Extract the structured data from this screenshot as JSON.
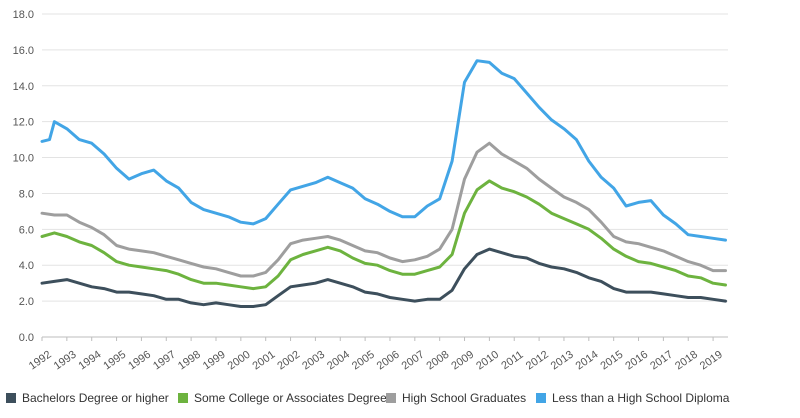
{
  "chart_data": {
    "type": "line",
    "x_ticks": [
      "1992",
      "1993",
      "1994",
      "1995",
      "1996",
      "1997",
      "1998",
      "1999",
      "2000",
      "2001",
      "2002",
      "2003",
      "2004",
      "2005",
      "2006",
      "2007",
      "2008",
      "2009",
      "2010",
      "2011",
      "2012",
      "2013",
      "2014",
      "2015",
      "2016",
      "2017",
      "2018",
      "2019"
    ],
    "y_ticks": [
      "0.0",
      "2.0",
      "4.0",
      "6.0",
      "8.0",
      "10.0",
      "12.0",
      "14.0",
      "16.0",
      "18.0"
    ],
    "ylim": [
      0,
      18
    ],
    "xlim": [
      1992,
      2019.6
    ],
    "grid": "horizontal",
    "legend_position": "bottom",
    "series": [
      {
        "name": "Bachelors Degree or higher",
        "color": "#3d4f5c",
        "points": [
          [
            1992,
            3.0
          ],
          [
            1992.5,
            3.1
          ],
          [
            1993,
            3.2
          ],
          [
            1993.5,
            3.0
          ],
          [
            1994,
            2.8
          ],
          [
            1994.5,
            2.7
          ],
          [
            1995,
            2.5
          ],
          [
            1995.5,
            2.5
          ],
          [
            1996,
            2.4
          ],
          [
            1996.5,
            2.3
          ],
          [
            1997,
            2.1
          ],
          [
            1997.5,
            2.1
          ],
          [
            1998,
            1.9
          ],
          [
            1998.5,
            1.8
          ],
          [
            1999,
            1.9
          ],
          [
            1999.5,
            1.8
          ],
          [
            2000,
            1.7
          ],
          [
            2000.5,
            1.7
          ],
          [
            2001,
            1.8
          ],
          [
            2001.5,
            2.3
          ],
          [
            2002,
            2.8
          ],
          [
            2002.5,
            2.9
          ],
          [
            2003,
            3.0
          ],
          [
            2003.5,
            3.2
          ],
          [
            2004,
            3.0
          ],
          [
            2004.5,
            2.8
          ],
          [
            2005,
            2.5
          ],
          [
            2005.5,
            2.4
          ],
          [
            2006,
            2.2
          ],
          [
            2006.5,
            2.1
          ],
          [
            2007,
            2.0
          ],
          [
            2007.5,
            2.1
          ],
          [
            2008,
            2.1
          ],
          [
            2008.5,
            2.6
          ],
          [
            2009,
            3.8
          ],
          [
            2009.5,
            4.6
          ],
          [
            2010,
            4.9
          ],
          [
            2010.5,
            4.7
          ],
          [
            2011,
            4.5
          ],
          [
            2011.5,
            4.4
          ],
          [
            2012,
            4.1
          ],
          [
            2012.5,
            3.9
          ],
          [
            2013,
            3.8
          ],
          [
            2013.5,
            3.6
          ],
          [
            2014,
            3.3
          ],
          [
            2014.5,
            3.1
          ],
          [
            2015,
            2.7
          ],
          [
            2015.5,
            2.5
          ],
          [
            2016,
            2.5
          ],
          [
            2016.5,
            2.5
          ],
          [
            2017,
            2.4
          ],
          [
            2017.5,
            2.3
          ],
          [
            2018,
            2.2
          ],
          [
            2018.5,
            2.2
          ],
          [
            2019,
            2.1
          ],
          [
            2019.5,
            2.0
          ]
        ]
      },
      {
        "name": "Some College or Associates Degree",
        "color": "#6db33f",
        "points": [
          [
            1992,
            5.6
          ],
          [
            1992.5,
            5.8
          ],
          [
            1993,
            5.6
          ],
          [
            1993.5,
            5.3
          ],
          [
            1994,
            5.1
          ],
          [
            1994.5,
            4.7
          ],
          [
            1995,
            4.2
          ],
          [
            1995.5,
            4.0
          ],
          [
            1996,
            3.9
          ],
          [
            1996.5,
            3.8
          ],
          [
            1997,
            3.7
          ],
          [
            1997.5,
            3.5
          ],
          [
            1998,
            3.2
          ],
          [
            1998.5,
            3.0
          ],
          [
            1999,
            3.0
          ],
          [
            1999.5,
            2.9
          ],
          [
            2000,
            2.8
          ],
          [
            2000.5,
            2.7
          ],
          [
            2001,
            2.8
          ],
          [
            2001.5,
            3.4
          ],
          [
            2002,
            4.3
          ],
          [
            2002.5,
            4.6
          ],
          [
            2003,
            4.8
          ],
          [
            2003.5,
            5.0
          ],
          [
            2004,
            4.8
          ],
          [
            2004.5,
            4.4
          ],
          [
            2005,
            4.1
          ],
          [
            2005.5,
            4.0
          ],
          [
            2006,
            3.7
          ],
          [
            2006.5,
            3.5
          ],
          [
            2007,
            3.5
          ],
          [
            2007.5,
            3.7
          ],
          [
            2008,
            3.9
          ],
          [
            2008.5,
            4.6
          ],
          [
            2009,
            6.9
          ],
          [
            2009.5,
            8.2
          ],
          [
            2010,
            8.7
          ],
          [
            2010.5,
            8.3
          ],
          [
            2011,
            8.1
          ],
          [
            2011.5,
            7.8
          ],
          [
            2012,
            7.4
          ],
          [
            2012.5,
            6.9
          ],
          [
            2013,
            6.6
          ],
          [
            2013.5,
            6.3
          ],
          [
            2014,
            6.0
          ],
          [
            2014.5,
            5.5
          ],
          [
            2015,
            4.9
          ],
          [
            2015.5,
            4.5
          ],
          [
            2016,
            4.2
          ],
          [
            2016.5,
            4.1
          ],
          [
            2017,
            3.9
          ],
          [
            2017.5,
            3.7
          ],
          [
            2018,
            3.4
          ],
          [
            2018.5,
            3.3
          ],
          [
            2019,
            3.0
          ],
          [
            2019.5,
            2.9
          ]
        ]
      },
      {
        "name": "High School Graduates",
        "color": "#9e9e9e",
        "points": [
          [
            1992,
            6.9
          ],
          [
            1992.5,
            6.8
          ],
          [
            1993,
            6.8
          ],
          [
            1993.5,
            6.4
          ],
          [
            1994,
            6.1
          ],
          [
            1994.5,
            5.7
          ],
          [
            1995,
            5.1
          ],
          [
            1995.5,
            4.9
          ],
          [
            1996,
            4.8
          ],
          [
            1996.5,
            4.7
          ],
          [
            1997,
            4.5
          ],
          [
            1997.5,
            4.3
          ],
          [
            1998,
            4.1
          ],
          [
            1998.5,
            3.9
          ],
          [
            1999,
            3.8
          ],
          [
            1999.5,
            3.6
          ],
          [
            2000,
            3.4
          ],
          [
            2000.5,
            3.4
          ],
          [
            2001,
            3.6
          ],
          [
            2001.5,
            4.3
          ],
          [
            2002,
            5.2
          ],
          [
            2002.5,
            5.4
          ],
          [
            2003,
            5.5
          ],
          [
            2003.5,
            5.6
          ],
          [
            2004,
            5.4
          ],
          [
            2004.5,
            5.1
          ],
          [
            2005,
            4.8
          ],
          [
            2005.5,
            4.7
          ],
          [
            2006,
            4.4
          ],
          [
            2006.5,
            4.2
          ],
          [
            2007,
            4.3
          ],
          [
            2007.5,
            4.5
          ],
          [
            2008,
            4.9
          ],
          [
            2008.5,
            6.0
          ],
          [
            2009,
            8.8
          ],
          [
            2009.5,
            10.3
          ],
          [
            2010,
            10.8
          ],
          [
            2010.5,
            10.2
          ],
          [
            2011,
            9.8
          ],
          [
            2011.5,
            9.4
          ],
          [
            2012,
            8.8
          ],
          [
            2012.5,
            8.3
          ],
          [
            2013,
            7.8
          ],
          [
            2013.5,
            7.5
          ],
          [
            2014,
            7.1
          ],
          [
            2014.5,
            6.4
          ],
          [
            2015,
            5.6
          ],
          [
            2015.5,
            5.3
          ],
          [
            2016,
            5.2
          ],
          [
            2016.5,
            5.0
          ],
          [
            2017,
            4.8
          ],
          [
            2017.5,
            4.5
          ],
          [
            2018,
            4.2
          ],
          [
            2018.5,
            4.0
          ],
          [
            2019,
            3.7
          ],
          [
            2019.5,
            3.7
          ]
        ]
      },
      {
        "name": "Less than a High School Diploma",
        "color": "#42a5e6",
        "points": [
          [
            1992,
            10.9
          ],
          [
            1992.3,
            11.0
          ],
          [
            1992.5,
            12.0
          ],
          [
            1993,
            11.6
          ],
          [
            1993.5,
            11.0
          ],
          [
            1994,
            10.8
          ],
          [
            1994.5,
            10.2
          ],
          [
            1995,
            9.4
          ],
          [
            1995.5,
            8.8
          ],
          [
            1996,
            9.1
          ],
          [
            1996.5,
            9.3
          ],
          [
            1997,
            8.7
          ],
          [
            1997.5,
            8.3
          ],
          [
            1998,
            7.5
          ],
          [
            1998.5,
            7.1
          ],
          [
            1999,
            6.9
          ],
          [
            1999.5,
            6.7
          ],
          [
            2000,
            6.4
          ],
          [
            2000.5,
            6.3
          ],
          [
            2001,
            6.6
          ],
          [
            2001.5,
            7.4
          ],
          [
            2002,
            8.2
          ],
          [
            2002.5,
            8.4
          ],
          [
            2003,
            8.6
          ],
          [
            2003.5,
            8.9
          ],
          [
            2004,
            8.6
          ],
          [
            2004.5,
            8.3
          ],
          [
            2005,
            7.7
          ],
          [
            2005.5,
            7.4
          ],
          [
            2006,
            7.0
          ],
          [
            2006.5,
            6.7
          ],
          [
            2007,
            6.7
          ],
          [
            2007.5,
            7.3
          ],
          [
            2008,
            7.7
          ],
          [
            2008.5,
            9.8
          ],
          [
            2009,
            14.2
          ],
          [
            2009.5,
            15.4
          ],
          [
            2010,
            15.3
          ],
          [
            2010.5,
            14.7
          ],
          [
            2011,
            14.4
          ],
          [
            2011.5,
            13.6
          ],
          [
            2012,
            12.8
          ],
          [
            2012.5,
            12.1
          ],
          [
            2013,
            11.6
          ],
          [
            2013.5,
            11.0
          ],
          [
            2014,
            9.8
          ],
          [
            2014.5,
            8.9
          ],
          [
            2015,
            8.3
          ],
          [
            2015.5,
            7.3
          ],
          [
            2016,
            7.5
          ],
          [
            2016.5,
            7.6
          ],
          [
            2017,
            6.8
          ],
          [
            2017.5,
            6.3
          ],
          [
            2018,
            5.7
          ],
          [
            2018.5,
            5.6
          ],
          [
            2019,
            5.5
          ],
          [
            2019.5,
            5.4
          ]
        ]
      }
    ]
  }
}
